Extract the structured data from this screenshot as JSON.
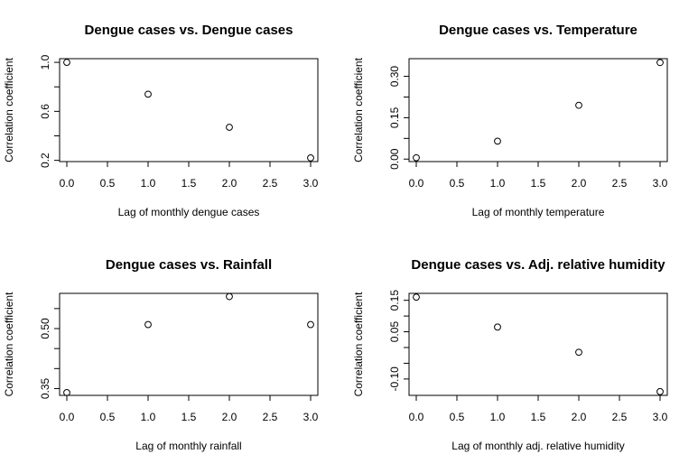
{
  "chart_data": [
    {
      "type": "scatter",
      "title": "Dengue cases vs. Dengue cases",
      "xlabel": "Lag of monthly dengue cases",
      "ylabel": "Correlation coefficient",
      "x": [
        0,
        1,
        2,
        3
      ],
      "y": [
        1.0,
        0.74,
        0.47,
        0.22
      ],
      "xlim": [
        0,
        3
      ],
      "ylim": [
        0.19,
        1.03
      ],
      "xticks": [
        "0.0",
        "0.5",
        "1.0",
        "1.5",
        "2.0",
        "2.5",
        "3.0"
      ],
      "yticks": [
        "0.2",
        "0.6",
        "1.0"
      ],
      "yticks_minor": [
        0.4,
        0.8
      ],
      "grid": false
    },
    {
      "type": "scatter",
      "title": "Dengue cases vs. Temperature",
      "xlabel": "Lag of monthly temperature",
      "ylabel": "Correlation coefficient",
      "x": [
        0,
        1,
        2,
        3
      ],
      "y": [
        0.005,
        0.065,
        0.195,
        0.35
      ],
      "xlim": [
        0,
        3
      ],
      "ylim": [
        -0.009,
        0.364
      ],
      "xticks": [
        "0.0",
        "0.5",
        "1.0",
        "1.5",
        "2.0",
        "2.5",
        "3.0"
      ],
      "yticks": [
        "0.00",
        "0.15",
        "0.30"
      ],
      "yticks_minor": [
        0.075,
        0.225
      ],
      "grid": false
    },
    {
      "type": "scatter",
      "title": "Dengue cases vs. Rainfall",
      "xlabel": "Lag of monthly rainfall",
      "ylabel": "Correlation coefficient",
      "x": [
        0,
        1,
        2,
        3
      ],
      "y": [
        0.34,
        0.51,
        0.58,
        0.51
      ],
      "xlim": [
        0,
        3
      ],
      "ylim": [
        0.333,
        0.588
      ],
      "xticks": [
        "0.0",
        "0.5",
        "1.0",
        "1.5",
        "2.0",
        "2.5",
        "3.0"
      ],
      "yticks": [
        "0.35",
        "0.50"
      ],
      "yticks_minor": [
        0.4,
        0.45,
        0.55
      ],
      "grid": false
    },
    {
      "type": "scatter",
      "title": "Dengue cases vs. Adj. relative humidity",
      "xlabel": "Lag of monthly adj. relative humidity",
      "ylabel": "Correlation coefficient",
      "x": [
        0,
        1,
        2,
        3
      ],
      "y": [
        0.16,
        0.065,
        -0.015,
        -0.14
      ],
      "xlim": [
        0,
        3
      ],
      "ylim": [
        -0.152,
        0.172
      ],
      "xticks": [
        "0.0",
        "0.5",
        "1.0",
        "1.5",
        "2.0",
        "2.5",
        "3.0"
      ],
      "yticks": [
        "-0.10",
        "0.05",
        "0.15"
      ],
      "yticks_minor": [
        -0.05,
        0.0,
        0.1
      ],
      "grid": false
    }
  ]
}
